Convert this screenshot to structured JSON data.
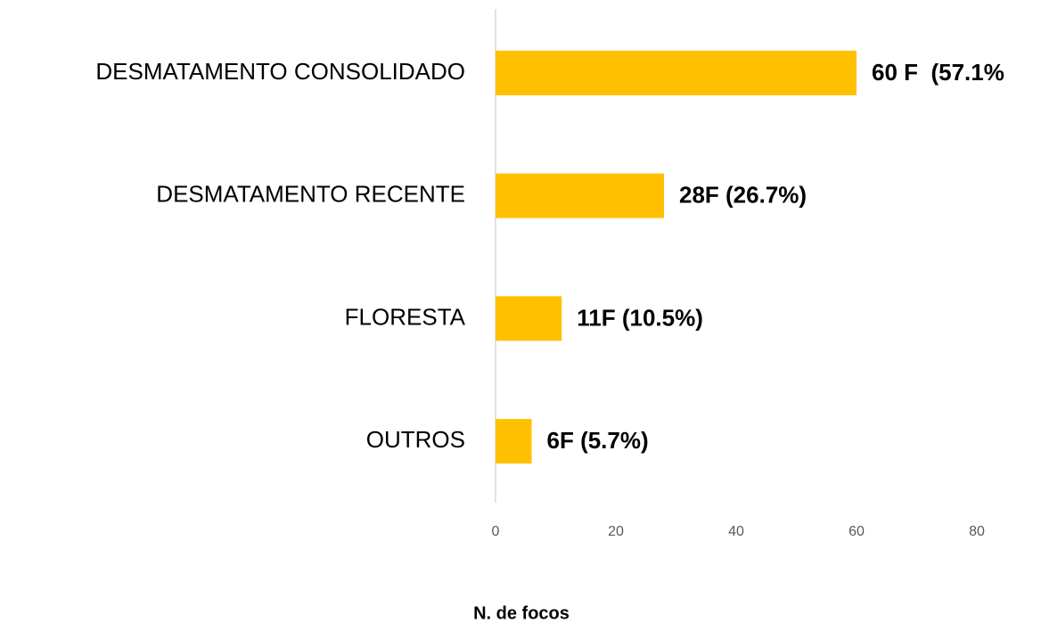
{
  "chart_data": {
    "type": "barh",
    "categories": [
      "DESMATAMENTO CONSOLIDADO",
      "DESMATAMENTO RECENTE",
      "FLORESTA",
      "OUTROS"
    ],
    "values": [
      60,
      28,
      11,
      6
    ],
    "value_labels": [
      "60 F  (57.1%",
      "28F (26.7%)",
      "11F (10.5%)",
      "6F (5.7%)"
    ],
    "color": "#ffc000",
    "xlim": [
      0,
      80
    ],
    "xticks": [
      0,
      20,
      40,
      60,
      80
    ],
    "x_label": "N. de focos"
  }
}
